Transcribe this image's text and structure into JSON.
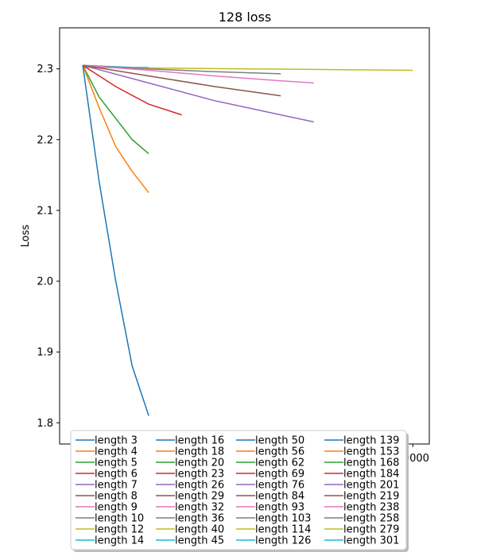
{
  "chart_data": {
    "type": "line",
    "title": "128 loss",
    "xlabel": "",
    "ylabel": "Loss",
    "xlim": [
      -700,
      10500
    ],
    "ylim": [
      1.77,
      2.358
    ],
    "xticks": [
      10000
    ],
    "xtick_labels": [
      "10000"
    ],
    "yticks": [
      1.8,
      1.9,
      2.0,
      2.1,
      2.2,
      2.3
    ],
    "ytick_labels": [
      "1.8",
      "1.9",
      "2.0",
      "2.1",
      "2.2",
      "2.3"
    ],
    "grid": false,
    "legend_position": "lower-center",
    "legend_columns": 4,
    "palette": [
      "#1f77b4",
      "#ff7f0e",
      "#2ca02c",
      "#d62728",
      "#9467bd",
      "#8c564b",
      "#e377c2",
      "#7f7f7f",
      "#bcbd22",
      "#17becf"
    ],
    "series": [
      {
        "name": "length 3",
        "color": "#1f77b4",
        "x": [
          0,
          500,
          1000,
          1500,
          2000
        ],
        "y": [
          2.305,
          2.14,
          2.0,
          1.88,
          1.81
        ]
      },
      {
        "name": "length 4",
        "color": "#ff7f0e",
        "x": [
          0,
          500,
          1000,
          1500,
          2000
        ],
        "y": [
          2.305,
          2.245,
          2.19,
          2.155,
          2.125
        ]
      },
      {
        "name": "length 5",
        "color": "#2ca02c",
        "x": [
          0,
          500,
          1000,
          1500,
          2000
        ],
        "y": [
          2.305,
          2.26,
          2.23,
          2.2,
          2.18
        ]
      },
      {
        "name": "length 6",
        "color": "#d62728",
        "x": [
          0,
          1000,
          2000,
          3000
        ],
        "y": [
          2.305,
          2.275,
          2.25,
          2.235
        ]
      },
      {
        "name": "length 7",
        "color": "#9467bd",
        "x": [
          0,
          2000,
          4000,
          6000,
          7000
        ],
        "y": [
          2.305,
          2.28,
          2.255,
          2.235,
          2.225
        ]
      },
      {
        "name": "length 8",
        "color": "#8c564b",
        "x": [
          0,
          2000,
          4000,
          6000
        ],
        "y": [
          2.305,
          2.29,
          2.275,
          2.262
        ]
      },
      {
        "name": "length 9",
        "color": "#e377c2",
        "x": [
          0,
          2000,
          4000,
          6000,
          7000
        ],
        "y": [
          2.305,
          2.298,
          2.29,
          2.283,
          2.28
        ]
      },
      {
        "name": "length 10",
        "color": "#7f7f7f",
        "x": [
          0,
          2000,
          4000,
          6000
        ],
        "y": [
          2.305,
          2.3,
          2.296,
          2.293
        ]
      },
      {
        "name": "length 12",
        "color": "#bcbd22",
        "x": [
          0,
          2500,
          5000,
          7500,
          10000
        ],
        "y": [
          2.302,
          2.301,
          2.3,
          2.299,
          2.298
        ]
      },
      {
        "name": "length 14",
        "color": "#17becf",
        "x": [
          0,
          500,
          1000,
          1500,
          2000
        ],
        "y": [
          2.305,
          2.304,
          2.303,
          2.302,
          2.302
        ]
      },
      {
        "name": "length 16",
        "color": "#1f77b4"
      },
      {
        "name": "length 18",
        "color": "#ff7f0e"
      },
      {
        "name": "length 20",
        "color": "#2ca02c"
      },
      {
        "name": "length 23",
        "color": "#d62728"
      },
      {
        "name": "length 26",
        "color": "#9467bd"
      },
      {
        "name": "length 29",
        "color": "#8c564b"
      },
      {
        "name": "length 32",
        "color": "#e377c2"
      },
      {
        "name": "length 36",
        "color": "#7f7f7f"
      },
      {
        "name": "length 40",
        "color": "#bcbd22"
      },
      {
        "name": "length 45",
        "color": "#17becf"
      },
      {
        "name": "length 50",
        "color": "#1f77b4"
      },
      {
        "name": "length 56",
        "color": "#ff7f0e"
      },
      {
        "name": "length 62",
        "color": "#2ca02c"
      },
      {
        "name": "length 69",
        "color": "#d62728"
      },
      {
        "name": "length 76",
        "color": "#9467bd"
      },
      {
        "name": "length 84",
        "color": "#8c564b"
      },
      {
        "name": "length 93",
        "color": "#e377c2"
      },
      {
        "name": "length 103",
        "color": "#7f7f7f"
      },
      {
        "name": "length 114",
        "color": "#bcbd22"
      },
      {
        "name": "length 126",
        "color": "#17becf"
      },
      {
        "name": "length 139",
        "color": "#1f77b4"
      },
      {
        "name": "length 153",
        "color": "#ff7f0e"
      },
      {
        "name": "length 168",
        "color": "#2ca02c"
      },
      {
        "name": "length 184",
        "color": "#d62728"
      },
      {
        "name": "length 201",
        "color": "#9467bd"
      },
      {
        "name": "length 219",
        "color": "#8c564b"
      },
      {
        "name": "length 238",
        "color": "#e377c2"
      },
      {
        "name": "length 258",
        "color": "#7f7f7f"
      },
      {
        "name": "length 279",
        "color": "#bcbd22"
      },
      {
        "name": "length 301",
        "color": "#17becf"
      }
    ]
  }
}
